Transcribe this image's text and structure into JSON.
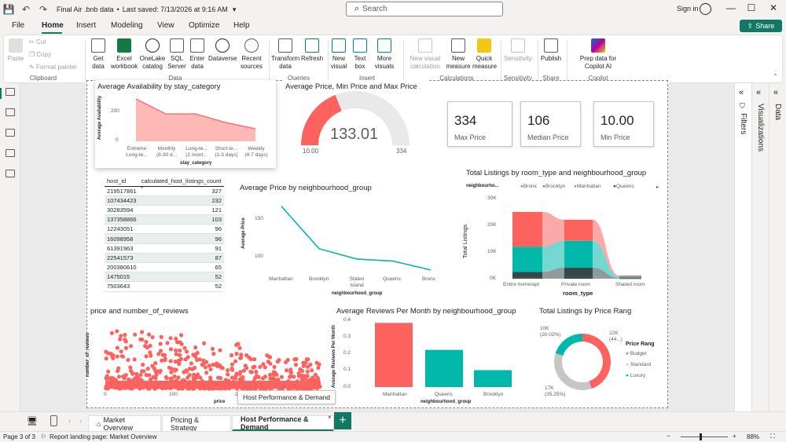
{
  "titlebar": {
    "doc_title": "Final Air .bnb data",
    "saved": "Last saved: 7/13/2026 at 9:16 AM",
    "sign_in": "Sign in"
  },
  "search": {
    "placeholder": "Search"
  },
  "menu": {
    "tabs": [
      "File",
      "Home",
      "Insert",
      "Modeling",
      "View",
      "Optimize",
      "Help"
    ],
    "active": "Home",
    "share_label": "Share"
  },
  "ribbon": {
    "clipboard": {
      "paste": "Paste",
      "cut": "Cut",
      "copy": "Copy",
      "format_painter": "Format painter",
      "group": "Clipboard"
    },
    "data": {
      "get_data": "Get data",
      "excel": "Excel workbook",
      "onelake": "OneLake catalog",
      "sql": "SQL Server",
      "enter": "Enter data",
      "dataverse": "Dataverse",
      "recent": "Recent sources",
      "group": "Data"
    },
    "queries": {
      "transform": "Transform data",
      "refresh": "Refresh",
      "group": "Queries"
    },
    "insert": {
      "new_visual": "New visual",
      "text_box": "Text box",
      "more_visuals": "More visuals",
      "group": "Insert"
    },
    "calculations": {
      "new_visual_calc": "New visual calculation",
      "new_measure": "New measure",
      "quick_measure": "Quick measure",
      "group": "Calculations"
    },
    "sensitivity": {
      "label": "Sensitivity",
      "group": "Sensitivity"
    },
    "share": {
      "publish": "Publish",
      "group": "Share"
    },
    "copilot": {
      "prep": "Prep data for Copilot AI",
      "group": "Copilot"
    }
  },
  "panes": {
    "filters": "Filters",
    "visualizations": "Visualizations",
    "data": "Data"
  },
  "visuals": {
    "availability": {
      "title": "Average Availability by stay_category",
      "ylabel": "Average Availability",
      "xlabel": "stay_category",
      "yticks": [
        "200",
        "0"
      ],
      "categories": [
        "Extreme Long-te...",
        "Monthly (8-30 d...",
        "Long-te... (1 mont...",
        "Short-te... (1-3 days)",
        "Weekly (4-7 days)"
      ]
    },
    "gauge": {
      "title": "Average Price, Min Price and Max Price",
      "value": "133.01",
      "min_label": "10.00",
      "max_label": "334"
    },
    "cards": [
      {
        "value": "334",
        "label": "Max Price"
      },
      {
        "value": "106",
        "label": "Median Price"
      },
      {
        "value": "10.00",
        "label": "Min Price"
      }
    ],
    "host_table": {
      "col1": "host_id",
      "col2": "calculated_host_listings_count",
      "rows": [
        [
          "219517861",
          "327"
        ],
        [
          "107434423",
          "232"
        ],
        [
          "30283594",
          "121"
        ],
        [
          "137358866",
          "103"
        ],
        [
          "12243051",
          "96"
        ],
        [
          "16098958",
          "96"
        ],
        [
          "61391963",
          "91"
        ],
        [
          "22541573",
          "87"
        ],
        [
          "200380610",
          "65"
        ],
        [
          "1475015",
          "52"
        ],
        [
          "7503643",
          "52"
        ]
      ]
    },
    "avg_price_ng": {
      "title": "Average Price by neighbourhood_group",
      "ylabel": "Average Price",
      "xlabel": "neighbourhood_group",
      "yticks": [
        "150",
        "100"
      ],
      "categories": [
        "Manhattan",
        "Brooklyn",
        "Staten Island",
        "Queens",
        "Bronx"
      ]
    },
    "listings_room": {
      "title": "Total Listings by room_type and neighbourhood_group",
      "legend_title": "neighbourho...",
      "legend": [
        "Bronx",
        "Brooklyn",
        "Manhattan",
        "Queens"
      ],
      "ylabel": "Total Listings",
      "xlabel": "room_type",
      "yticks": [
        "30K",
        "20K",
        "10K",
        "0K"
      ],
      "categories": [
        "Entire home/apt",
        "Private room",
        "Shared room"
      ]
    },
    "scatter": {
      "title": "price and number_of_reviews",
      "ylabel": "number_of_reviews",
      "xlabel": "price",
      "xticks": [
        "0",
        "100",
        "200"
      ]
    },
    "reviews_month": {
      "title": "Average Reviews Per Month by neighbourhood_group",
      "ylabel": "Average Reviews Per Month",
      "xlabel": "neighbourhood_group",
      "yticks": [
        "0.4",
        "0.3",
        "0.2",
        "0.1",
        "0.0"
      ]
    },
    "price_rang": {
      "title": "Total Listings by Price Rang",
      "legend_title": "Price Rang",
      "legend": [
        "Budget",
        "Standard",
        "Luxury"
      ],
      "labels": [
        "10K (20.02%)",
        "22K (44...)",
        "17K (35.25%)"
      ]
    }
  },
  "pages": {
    "tabs": [
      "Market Overview",
      "Pricing & Strategy",
      "Host Performance & Demand"
    ],
    "active": "Host Performance & Demand",
    "tooltip": "Host Performance & Demand"
  },
  "status": {
    "page": "Page 3 of 3",
    "landing": "Report landing page: Market Overview",
    "zoom": "88%"
  },
  "chart_data": [
    {
      "type": "area",
      "title": "Average Availability by stay_category",
      "xlabel": "stay_category",
      "ylabel": "Average Availability",
      "categories": [
        "Extreme Long-te...",
        "Monthly (8-30 d...",
        "Long-te... (1 mont...",
        "Short-te... (1-3 days)",
        "Weekly (4-7 days)"
      ],
      "values": [
        270,
        175,
        175,
        120,
        80
      ],
      "ylim": [
        0,
        300
      ],
      "colors": [
        "#fd625e"
      ]
    },
    {
      "type": "line",
      "title": "Average Price by neighbourhood_group",
      "xlabel": "neighbourhood_group",
      "ylabel": "Average Price",
      "categories": [
        "Manhattan",
        "Brooklyn",
        "Staten Island",
        "Queens",
        "Bronx"
      ],
      "values": [
        180,
        118,
        103,
        100,
        87
      ],
      "ylim": [
        80,
        190
      ],
      "colors": [
        "#01b8aa"
      ]
    },
    {
      "type": "area",
      "title": "Total Listings by room_type and neighbourhood_group",
      "xlabel": "room_type",
      "ylabel": "Total Listings",
      "categories": [
        "Entire home/apt",
        "Private room",
        "Shared room"
      ],
      "series": [
        {
          "name": "Bronx",
          "values": [
            400,
            700,
            60
          ]
        },
        {
          "name": "Brooklyn",
          "values": [
            9500,
            10100,
            400
          ]
        },
        {
          "name": "Manhattan",
          "values": [
            13000,
            7900,
            500
          ]
        },
        {
          "name": "Queens",
          "values": [
            2100,
            3400,
            200
          ]
        }
      ],
      "ylim": [
        0,
        30000
      ]
    },
    {
      "type": "bar",
      "title": "Average Reviews Per Month by neighbourhood_group",
      "xlabel": "neighbourhood_group",
      "ylabel": "Average Reviews Per Month",
      "categories": [
        "Manhattan",
        "Queens",
        "Brooklyn"
      ],
      "values": [
        0.38,
        0.22,
        0.1
      ],
      "ylim": [
        0,
        0.4
      ],
      "colors": [
        "#fd625e",
        "#01b8aa",
        "#01b8aa"
      ]
    },
    {
      "type": "pie",
      "title": "Total Listings by Price Rang",
      "categories": [
        "Budget",
        "Standard",
        "Luxury"
      ],
      "values": [
        44.73,
        35.25,
        20.02
      ],
      "colors": [
        "#fd625e",
        "#c8c6c4",
        "#01b8aa"
      ]
    }
  ]
}
